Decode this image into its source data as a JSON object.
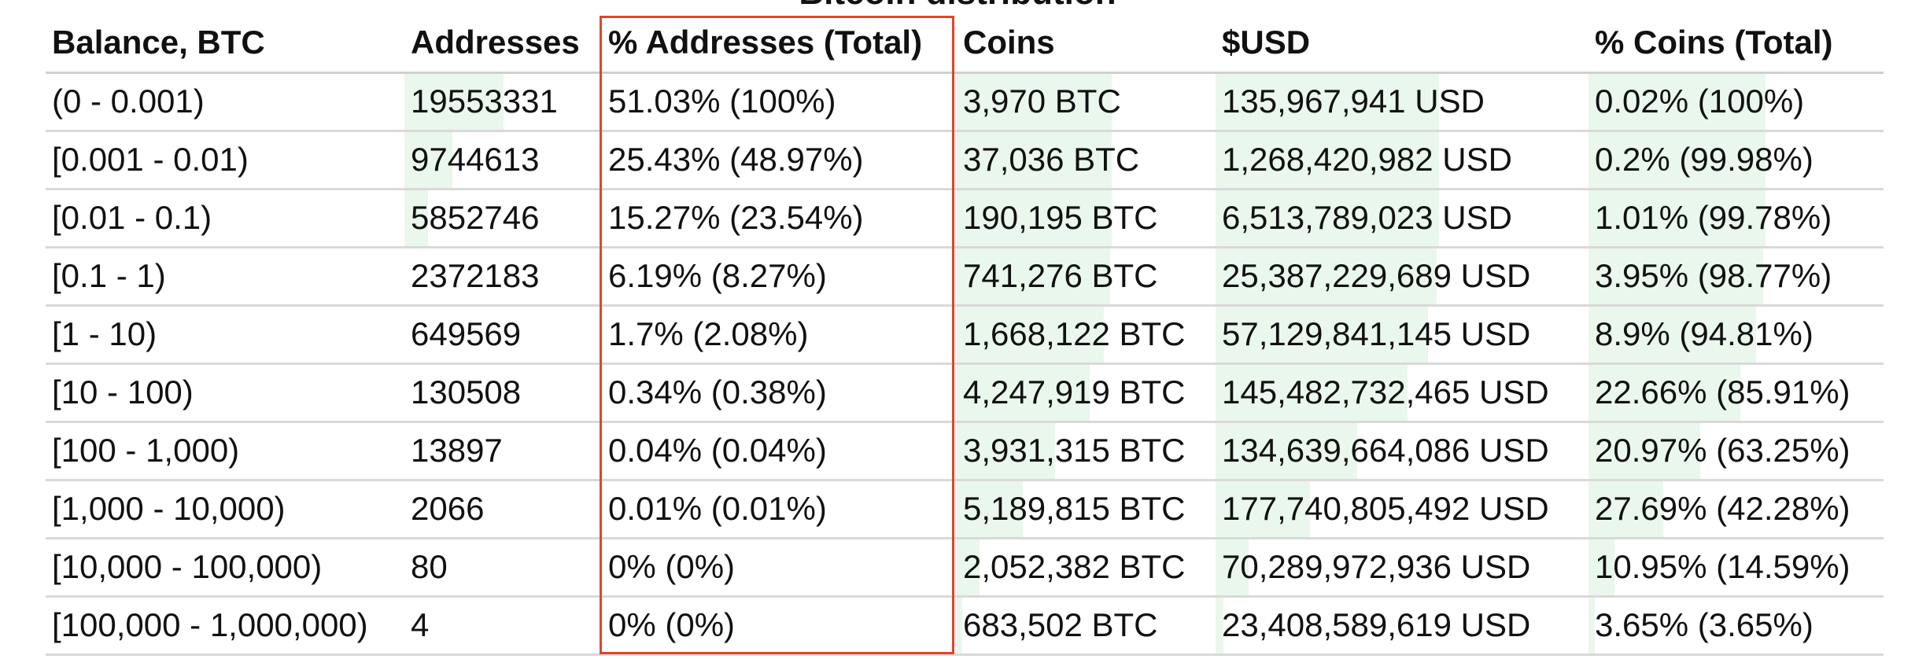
{
  "title": "Bitcoin distribution",
  "highlight_color": "#e0452a",
  "bar_color": "#eaf7ec",
  "columns": [
    "Balance, BTC",
    "Addresses",
    "% Addresses (Total)",
    "Coins",
    "$USD",
    "% Coins (Total)"
  ],
  "rows": [
    {
      "balance": "(0 - 0.001)",
      "addresses": "19553331",
      "pct_addresses": "51.03% (100%)",
      "coins": "3,970 BTC",
      "usd": "135,967,941 USD",
      "pct_coins": "0.02% (100%)",
      "addr_total_pct": 100,
      "coins_total_pct": 100
    },
    {
      "balance": "[0.001 - 0.01)",
      "addresses": "9744613",
      "pct_addresses": "25.43% (48.97%)",
      "coins": "37,036 BTC",
      "usd": "1,268,420,982 USD",
      "pct_coins": "0.2% (99.98%)",
      "addr_total_pct": 48.97,
      "coins_total_pct": 99.98
    },
    {
      "balance": "[0.01 - 0.1)",
      "addresses": "5852746",
      "pct_addresses": "15.27% (23.54%)",
      "coins": "190,195 BTC",
      "usd": "6,513,789,023 USD",
      "pct_coins": "1.01% (99.78%)",
      "addr_total_pct": 23.54,
      "coins_total_pct": 99.78
    },
    {
      "balance": "[0.1 - 1)",
      "addresses": "2372183",
      "pct_addresses": "6.19% (8.27%)",
      "coins": "741,276 BTC",
      "usd": "25,387,229,689 USD",
      "pct_coins": "3.95% (98.77%)",
      "addr_total_pct": 8.27,
      "coins_total_pct": 98.77
    },
    {
      "balance": "[1 - 10)",
      "addresses": "649569",
      "pct_addresses": "1.7% (2.08%)",
      "coins": "1,668,122 BTC",
      "usd": "57,129,841,145 USD",
      "pct_coins": "8.9% (94.81%)",
      "addr_total_pct": 2.08,
      "coins_total_pct": 94.81
    },
    {
      "balance": "[10 - 100)",
      "addresses": "130508",
      "pct_addresses": "0.34% (0.38%)",
      "coins": "4,247,919 BTC",
      "usd": "145,482,732,465 USD",
      "pct_coins": "22.66% (85.91%)",
      "addr_total_pct": 0.38,
      "coins_total_pct": 85.91
    },
    {
      "balance": "[100 - 1,000)",
      "addresses": "13897",
      "pct_addresses": "0.04% (0.04%)",
      "coins": "3,931,315 BTC",
      "usd": "134,639,664,086 USD",
      "pct_coins": "20.97% (63.25%)",
      "addr_total_pct": 0.04,
      "coins_total_pct": 63.25
    },
    {
      "balance": "[1,000 - 10,000)",
      "addresses": "2066",
      "pct_addresses": "0.01% (0.01%)",
      "coins": "5,189,815 BTC",
      "usd": "177,740,805,492 USD",
      "pct_coins": "27.69% (42.28%)",
      "addr_total_pct": 0.01,
      "coins_total_pct": 42.28
    },
    {
      "balance": "[10,000 - 100,000)",
      "addresses": "80",
      "pct_addresses": "0% (0%)",
      "coins": "2,052,382 BTC",
      "usd": "70,289,972,936 USD",
      "pct_coins": "10.95% (14.59%)",
      "addr_total_pct": 0,
      "coins_total_pct": 14.59
    },
    {
      "balance": "[100,000 - 1,000,000)",
      "addresses": "4",
      "pct_addresses": "0% (0%)",
      "coins": "683,502 BTC",
      "usd": "23,408,589,619 USD",
      "pct_coins": "3.65% (3.65%)",
      "addr_total_pct": 0,
      "coins_total_pct": 3.65
    }
  ]
}
